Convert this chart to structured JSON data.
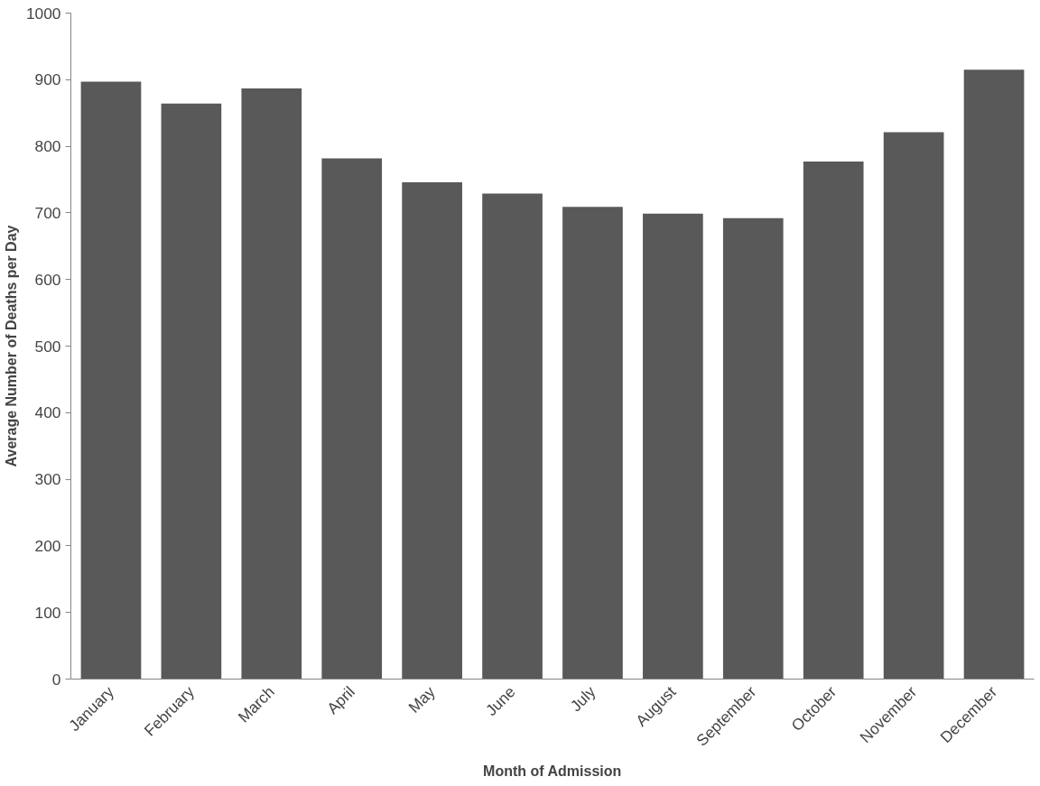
{
  "chart_data": {
    "type": "bar",
    "xlabel": "Month of Admission",
    "ylabel": "Average Number of Deaths per Day",
    "categories": [
      "January",
      "February",
      "March",
      "April",
      "May",
      "June",
      "July",
      "August",
      "September",
      "October",
      "November",
      "December"
    ],
    "values": [
      897,
      864,
      887,
      782,
      746,
      729,
      709,
      699,
      692,
      777,
      821,
      915
    ],
    "color": "#595959",
    "ylim": [
      0,
      1000
    ],
    "yticks": [
      0,
      100,
      200,
      300,
      400,
      500,
      600,
      700,
      800,
      900,
      1000
    ],
    "grid": false
  }
}
